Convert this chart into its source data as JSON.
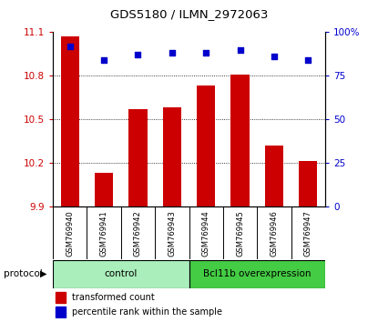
{
  "title": "GDS5180 / ILMN_2972063",
  "samples": [
    "GSM769940",
    "GSM769941",
    "GSM769942",
    "GSM769943",
    "GSM769944",
    "GSM769945",
    "GSM769946",
    "GSM769947"
  ],
  "bar_values": [
    11.07,
    10.13,
    10.57,
    10.58,
    10.73,
    10.81,
    10.32,
    10.21
  ],
  "dot_values": [
    92,
    84,
    87,
    88,
    88,
    90,
    86,
    84
  ],
  "ylim_left": [
    9.9,
    11.1
  ],
  "ylim_right": [
    0,
    100
  ],
  "yticks_left": [
    9.9,
    10.2,
    10.5,
    10.8,
    11.1
  ],
  "yticks_right": [
    0,
    25,
    50,
    75,
    100
  ],
  "bar_color": "#cc0000",
  "dot_color": "#0000cc",
  "control_color": "#aaeebb",
  "bcl_color": "#44cc44",
  "protocol_label": "protocol",
  "legend_bar_label": "transformed count",
  "legend_dot_label": "percentile rank within the sample",
  "tick_label_color_left": "#cc0000",
  "tick_label_color_right": "#0000cc",
  "background_color": "#ffffff",
  "xticklabel_bg": "#cccccc"
}
